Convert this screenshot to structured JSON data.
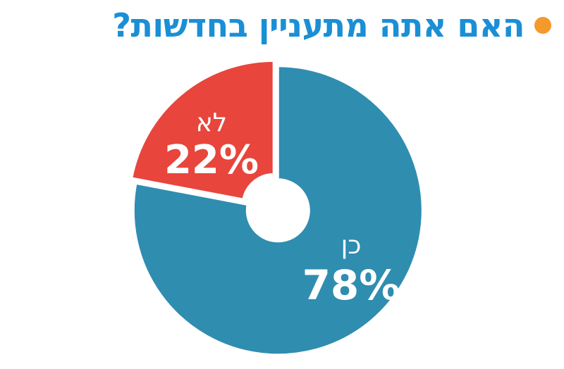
{
  "title": "האם אתה מתעניין בחדשות?",
  "colors": {
    "title": "#1a8fd6",
    "bullet": "#f39a2b",
    "yes": "#2f8db0",
    "no": "#e8453c",
    "background": "#ffffff"
  },
  "chart_data": {
    "type": "pie",
    "title": "האם אתה מתעניין בחדשות?",
    "donut": true,
    "slices": [
      {
        "label": "כן",
        "value": 78,
        "value_label": "78%",
        "color": "#2f8db0"
      },
      {
        "label": "לא",
        "value": 22,
        "value_label": "22%",
        "color": "#e8453c"
      }
    ]
  }
}
